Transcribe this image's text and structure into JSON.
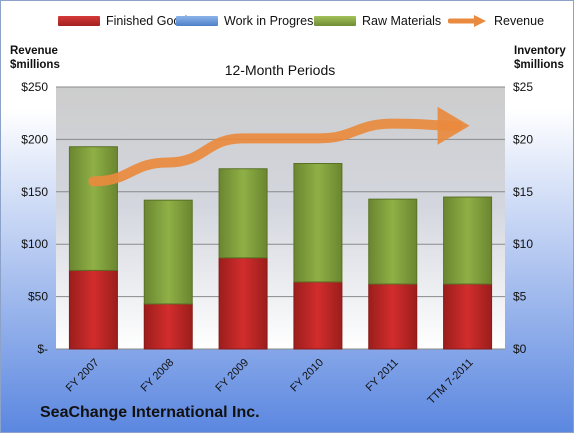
{
  "chart_data": {
    "type": "bar",
    "subtitle": "12-Month Periods",
    "company": "SeaChange International Inc.",
    "categories": [
      "FY 2007",
      "FY 2008",
      "FY 2009",
      "FY 2010",
      "FY 2011",
      "TTM 7-2011"
    ],
    "ylabel_left": "Revenue\n$millions",
    "ylabel_right": "Inventory\n$millions",
    "ylim_left": [
      0,
      250
    ],
    "ylim_right": [
      0,
      25
    ],
    "yticks_left": [
      "$-",
      "$50",
      "$100",
      "$150",
      "$200",
      "$250"
    ],
    "yticks_right": [
      "$0",
      "$5",
      "$10",
      "$15",
      "$20",
      "$25"
    ],
    "grid": true,
    "legend_position": "top",
    "stacked": true,
    "series": [
      {
        "name": "Finished Goods",
        "axis": "right",
        "kind": "bar",
        "color": "#c8262a",
        "values": [
          7.5,
          4.3,
          8.7,
          6.4,
          6.2,
          6.2
        ]
      },
      {
        "name": "Work in Progress",
        "axis": "right",
        "kind": "bar",
        "color": "#5b8fd4",
        "values": [
          0,
          0,
          0,
          0,
          0,
          0
        ]
      },
      {
        "name": "Raw Materials",
        "axis": "right",
        "kind": "bar",
        "color": "#85a83e",
        "values": [
          11.8,
          9.9,
          8.5,
          11.3,
          8.1,
          8.3
        ]
      },
      {
        "name": "Revenue",
        "axis": "left",
        "kind": "line",
        "color": "#e98a3e",
        "values": [
          160,
          178,
          201,
          201,
          215,
          213
        ]
      }
    ]
  }
}
